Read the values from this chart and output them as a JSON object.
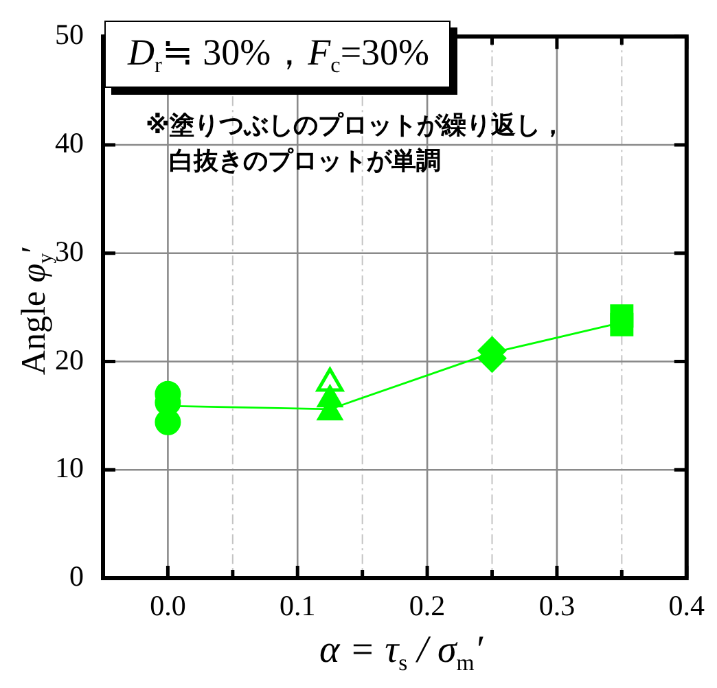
{
  "chart_data": {
    "type": "scatter",
    "xlabel": "α = τ$_{s}$ / σ$_{m}$′",
    "ylabel": "Angle φ$_{y}$′",
    "annotations": [
      "D$_{r}$≒ 30%，F$_{c}$=30%",
      "※塗りつぶしのプロットが繰り返し，白抜きのプロットが単調"
    ],
    "xlim": [
      -0.05,
      0.4
    ],
    "xticks": [
      {
        "value": 0,
        "label": "0.0"
      },
      {
        "value": 0.05,
        "label": null
      },
      {
        "value": 0.1,
        "label": "0.1"
      },
      {
        "value": 0.15,
        "label": null
      },
      {
        "value": 0.2,
        "label": "0.2"
      },
      {
        "value": 0.25,
        "label": null
      },
      {
        "value": 0.3,
        "label": "0.3"
      },
      {
        "value": 0.35,
        "label": null
      },
      {
        "value": 0.4,
        "label": "0.4"
      }
    ],
    "ylim": [
      0,
      50
    ],
    "yticks": [
      0,
      10,
      20,
      30,
      40,
      50
    ],
    "grid": true,
    "series": [
      {
        "type": "line",
        "x": [
          0,
          0.125,
          0.25,
          0.35
        ],
        "values": [
          15.9,
          15.6,
          20.8,
          23.6
        ],
        "color": "#00ff00",
        "marker": "none"
      },
      {
        "x": [
          0,
          0,
          0
        ],
        "values": [
          17.0,
          16.2,
          14.4
        ],
        "color": "#00ff00",
        "marker": "circle"
      },
      {
        "x": [
          0.125,
          0.125
        ],
        "values": [
          16.5,
          15.3
        ],
        "color": "#00ff00",
        "marker": "triangle"
      },
      {
        "x": [
          0.125
        ],
        "values": [
          18.0
        ],
        "color": "#00ff00",
        "marker": "triangle-open"
      },
      {
        "x": [
          0.25,
          0.25
        ],
        "values": [
          21.0,
          20.3
        ],
        "color": "#00ff00",
        "marker": "diamond"
      },
      {
        "x": [
          0.35,
          0.35
        ],
        "values": [
          24.2,
          23.4
        ],
        "color": "#00ff00",
        "marker": "square"
      }
    ]
  }
}
